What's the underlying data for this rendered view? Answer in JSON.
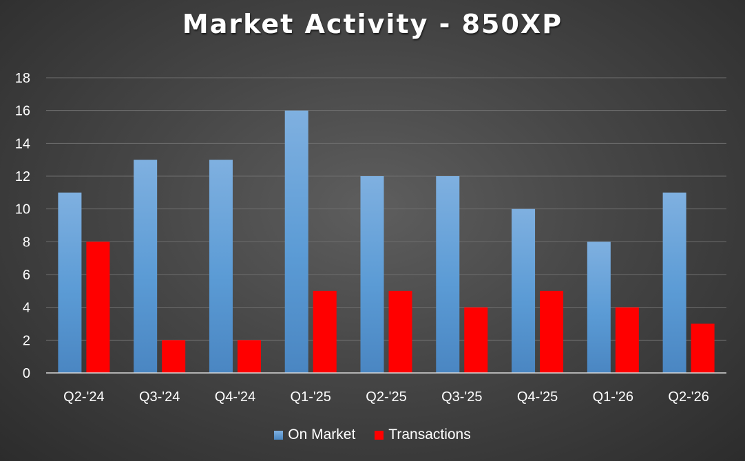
{
  "chart_data": {
    "type": "bar",
    "title": "Market Activity - 850XP",
    "categories": [
      "Q2-'24",
      "Q3-'24",
      "Q4-'24",
      "Q1-'25",
      "Q2-'25",
      "Q3-'25",
      "Q4-'25",
      "Q1-'26",
      "Q2-'26"
    ],
    "series": [
      {
        "name": "On Market",
        "values": [
          11,
          13,
          13,
          16,
          12,
          12,
          10,
          8,
          11
        ],
        "color": "#5b9bd5"
      },
      {
        "name": "Transactions",
        "values": [
          8,
          2,
          2,
          5,
          5,
          4,
          5,
          4,
          3
        ],
        "color": "#ff0000"
      }
    ],
    "ylim": [
      0,
      18
    ],
    "yticks": [
      0,
      2,
      4,
      6,
      8,
      10,
      12,
      14,
      16,
      18
    ],
    "grid": true,
    "legend": "bottom",
    "xlabel": "",
    "ylabel": ""
  }
}
